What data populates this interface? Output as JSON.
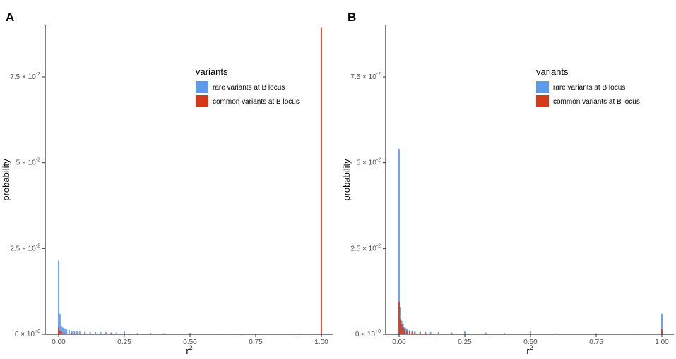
{
  "figure": {
    "panels": [
      "A",
      "B"
    ]
  },
  "chart_data": [
    {
      "type": "bar",
      "panel": "A",
      "xlabel_base": "r",
      "xlabel_sup": "2",
      "ylabel": "probability",
      "xlim": [
        0,
        1
      ],
      "ylim": [
        0,
        0.09
      ],
      "x_ticks": [
        0,
        0.25,
        0.5,
        0.75,
        1.0
      ],
      "x_tick_labels": [
        "0.00",
        "0.25",
        "0.50",
        "0.75",
        "1.00"
      ],
      "y_ticks": [
        0,
        0.025,
        0.05,
        0.075
      ],
      "y_tick_labels": [
        {
          "mant": "0",
          "exp": "+0"
        },
        {
          "mant": "2.5",
          "exp": "-2"
        },
        {
          "mant": "5",
          "exp": "-2"
        },
        {
          "mant": "7.5",
          "exp": "-2"
        }
      ],
      "legend": {
        "title": "variants",
        "placement": "top-right",
        "entries": [
          "rare variants at B locus",
          "common variants at B locus"
        ]
      },
      "colors": {
        "rare": "#5b9bf0",
        "common": "#d43a1a"
      },
      "series": [
        {
          "name": "rare variants at B locus",
          "x": [
            0.0,
            0.005,
            0.01,
            0.015,
            0.02,
            0.025,
            0.03,
            0.04,
            0.05,
            0.06,
            0.07,
            0.08,
            0.1,
            0.12,
            0.14,
            0.16,
            0.18,
            0.2,
            0.22,
            0.25,
            0.3,
            0.35,
            0.4,
            0.5,
            0.6,
            0.7,
            0.8,
            0.9
          ],
          "values": [
            0.0215,
            0.006,
            0.0025,
            0.002,
            0.0018,
            0.0015,
            0.0014,
            0.0012,
            0.001,
            0.0009,
            0.0008,
            0.0008,
            0.0007,
            0.0007,
            0.0006,
            0.0006,
            0.0006,
            0.0005,
            0.0005,
            0.0008,
            0.0004,
            0.0004,
            0.0003,
            0.0004,
            0.0002,
            0.0002,
            0.0002,
            0.0002
          ]
        },
        {
          "name": "common variants at B locus",
          "x": [
            0.0,
            0.005,
            0.01,
            0.02,
            0.05,
            0.1,
            0.2,
            0.3,
            0.5,
            0.7,
            0.9,
            1.0
          ],
          "values": [
            0.002,
            0.001,
            0.0008,
            0.0005,
            0.0004,
            0.0003,
            0.0003,
            0.0002,
            0.0002,
            0.0002,
            0.0002,
            0.0895
          ]
        }
      ]
    },
    {
      "type": "bar",
      "panel": "B",
      "xlabel_base": "r",
      "xlabel_sup": "2",
      "ylabel": "probability",
      "xlim": [
        0,
        1
      ],
      "ylim": [
        0,
        0.09
      ],
      "x_ticks": [
        0,
        0.25,
        0.5,
        0.75,
        1.0
      ],
      "x_tick_labels": [
        "0.00",
        "0.25",
        "0.50",
        "0.75",
        "1.00"
      ],
      "y_ticks": [
        0,
        0.025,
        0.05,
        0.075
      ],
      "y_tick_labels": [
        {
          "mant": "0",
          "exp": "+0"
        },
        {
          "mant": "2.5",
          "exp": "-2"
        },
        {
          "mant": "5",
          "exp": "-2"
        },
        {
          "mant": "7.5",
          "exp": "-2"
        }
      ],
      "legend": {
        "title": "variants",
        "placement": "top-right",
        "entries": [
          "rare variants at B locus",
          "common variants at B locus"
        ]
      },
      "colors": {
        "rare": "#5b9bf0",
        "common": "#d43a1a"
      },
      "series": [
        {
          "name": "rare variants at B locus",
          "x": [
            0.0,
            0.005,
            0.01,
            0.015,
            0.02,
            0.025,
            0.03,
            0.04,
            0.05,
            0.06,
            0.08,
            0.1,
            0.12,
            0.15,
            0.2,
            0.25,
            0.33,
            0.4,
            0.5,
            0.6,
            0.75,
            0.9,
            1.0
          ],
          "values": [
            0.054,
            0.008,
            0.004,
            0.003,
            0.002,
            0.0018,
            0.0015,
            0.0012,
            0.001,
            0.0009,
            0.0008,
            0.0007,
            0.0006,
            0.0006,
            0.0005,
            0.0008,
            0.0005,
            0.0004,
            0.0008,
            0.0003,
            0.0003,
            0.0002,
            0.006
          ]
        },
        {
          "name": "common variants at B locus",
          "x": [
            0.0,
            0.005,
            0.01,
            0.015,
            0.02,
            0.03,
            0.04,
            0.05,
            0.06,
            0.08,
            0.1,
            0.15,
            0.2,
            0.3,
            0.5,
            0.75,
            1.0
          ],
          "values": [
            0.0095,
            0.0045,
            0.003,
            0.002,
            0.0015,
            0.001,
            0.0008,
            0.0007,
            0.0006,
            0.0005,
            0.0004,
            0.0003,
            0.0003,
            0.0002,
            0.0002,
            0.0002,
            0.0015
          ]
        }
      ]
    }
  ]
}
